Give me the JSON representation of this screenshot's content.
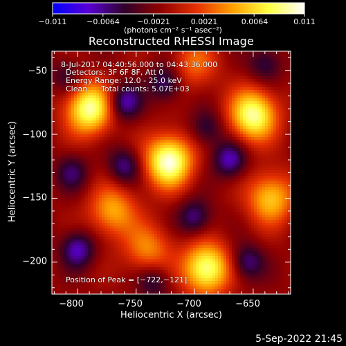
{
  "colorbar": {
    "ticks": [
      "−0.011",
      "−0.0064",
      "−0.0021",
      "0.0021",
      "0.0064",
      "0.011"
    ],
    "units": "(photons cm⁻² s⁻¹ asec⁻²)",
    "colors": [
      "#0000ff",
      "#5a00d4",
      "#30002a",
      "#900000",
      "#e63000",
      "#ffa000",
      "#ffff40",
      "#ffffff"
    ]
  },
  "plot": {
    "title": "Reconstructed RHESSI Image",
    "xlabel": "Heliocentric X (arcsec)",
    "ylabel": "Heliocentric Y (arcsec)",
    "xticks": [
      "−800",
      "−750",
      "−700",
      "−650"
    ],
    "yticks": [
      "−50",
      "−100",
      "−150",
      "−200"
    ],
    "info_line1": "8-Jul-2017 04:40:56.000 to 04:43:36.000",
    "info_line2": "Detectors: 3F 6F 8F, Att 0",
    "info_line3": "Energy Range: 12.0 - 25.0 keV",
    "info_line4_a": "Clean",
    "info_line4_b": "Total counts: 5.07E+03",
    "peak_label": "Position of Peak = [−722,−121]"
  },
  "footer": {
    "date": "5-Sep-2022 21:45"
  },
  "chart_data": {
    "type": "heatmap",
    "title": "Reconstructed RHESSI Image",
    "xlabel": "Heliocentric X (arcsec)",
    "ylabel": "Heliocentric Y (arcsec)",
    "xlim": [
      -822,
      -618
    ],
    "ylim": [
      -225,
      -35
    ],
    "x_ticks": [
      -800,
      -750,
      -700,
      -650
    ],
    "y_ticks": [
      -50,
      -100,
      -150,
      -200
    ],
    "colorbar_range": [
      -0.011,
      0.011
    ],
    "colorbar_ticks": [
      -0.011,
      -0.0064,
      -0.0021,
      0.0021,
      0.0064,
      0.011
    ],
    "sources": [
      {
        "x": -722,
        "y": -121,
        "intensity": 0.011,
        "label": "peak"
      },
      {
        "x": -790,
        "y": -80,
        "intensity": 0.01
      },
      {
        "x": -650,
        "y": -85,
        "intensity": 0.01
      },
      {
        "x": -690,
        "y": -205,
        "intensity": 0.01
      },
      {
        "x": -635,
        "y": -150,
        "intensity": 0.007
      },
      {
        "x": -770,
        "y": -160,
        "intensity": 0.006
      },
      {
        "x": -740,
        "y": -190,
        "intensity": 0.005
      },
      {
        "x": -700,
        "y": -45,
        "intensity": 0.004
      }
    ],
    "annotations": [
      "8-Jul-2017 04:40:56.000 to 04:43:36.000",
      "Detectors: 3F 6F 8F, Att 0",
      "Energy Range: 12.0 - 25.0 keV",
      "Clean",
      "Total counts: 5.07E+03",
      "Position of Peak = [−722,−121]"
    ]
  }
}
